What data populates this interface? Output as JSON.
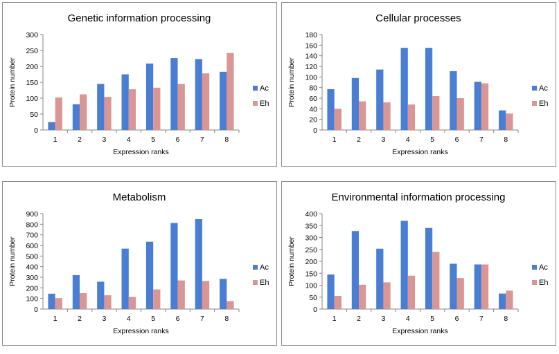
{
  "colors": {
    "Ac": "#4a7ed4",
    "Eh": "#d99694",
    "frame": "#8c8c8c",
    "axis": "#868686"
  },
  "chart_data": [
    {
      "type": "bar",
      "title": "Genetic information processing",
      "xlabel": "Expression ranks",
      "ylabel": "Protein number",
      "categories": [
        "1",
        "2",
        "3",
        "4",
        "5",
        "6",
        "7",
        "8"
      ],
      "ylim": [
        0,
        300
      ],
      "yticks": [
        0,
        50,
        100,
        150,
        200,
        250,
        300
      ],
      "grid": false,
      "legend": "right",
      "series": [
        {
          "name": "Ac",
          "values": [
            25,
            81,
            145,
            175,
            209,
            226,
            223,
            183
          ]
        },
        {
          "name": "Eh",
          "values": [
            102,
            112,
            104,
            128,
            133,
            145,
            178,
            242
          ]
        }
      ]
    },
    {
      "type": "bar",
      "title": "Cellular processes",
      "xlabel": "Expression ranks",
      "ylabel": "Protein number",
      "categories": [
        "1",
        "2",
        "3",
        "4",
        "5",
        "6",
        "7",
        "8"
      ],
      "ylim": [
        0,
        180
      ],
      "yticks": [
        0,
        20,
        40,
        60,
        80,
        100,
        120,
        140,
        160,
        180
      ],
      "grid": false,
      "legend": "right",
      "series": [
        {
          "name": "Ac",
          "values": [
            77,
            98,
            114,
            155,
            155,
            111,
            91,
            37
          ]
        },
        {
          "name": "Eh",
          "values": [
            40,
            54,
            52,
            48,
            64,
            60,
            88,
            31
          ]
        }
      ]
    },
    {
      "type": "bar",
      "title": "Metabolism",
      "xlabel": "Expression ranks",
      "ylabel": "Protein number",
      "categories": [
        "1",
        "2",
        "3",
        "4",
        "5",
        "6",
        "7",
        "8"
      ],
      "ylim": [
        0,
        900
      ],
      "yticks": [
        0,
        100,
        200,
        300,
        400,
        500,
        600,
        700,
        800,
        900
      ],
      "grid": false,
      "legend": "right",
      "series": [
        {
          "name": "Ac",
          "values": [
            145,
            320,
            258,
            570,
            635,
            812,
            848,
            285
          ]
        },
        {
          "name": "Eh",
          "values": [
            103,
            150,
            130,
            115,
            185,
            270,
            265,
            75
          ]
        }
      ]
    },
    {
      "type": "bar",
      "title": "Environmental information processing",
      "xlabel": "Expression ranks",
      "ylabel": "Protein number",
      "categories": [
        "1",
        "2",
        "3",
        "4",
        "5",
        "6",
        "7",
        "8"
      ],
      "ylim": [
        0,
        400
      ],
      "yticks": [
        0,
        50,
        100,
        150,
        200,
        250,
        300,
        350,
        400
      ],
      "grid": false,
      "legend": "right",
      "series": [
        {
          "name": "Ac",
          "values": [
            145,
            327,
            253,
            370,
            340,
            190,
            187,
            65
          ]
        },
        {
          "name": "Eh",
          "values": [
            55,
            102,
            112,
            140,
            240,
            130,
            187,
            77
          ]
        }
      ]
    }
  ]
}
